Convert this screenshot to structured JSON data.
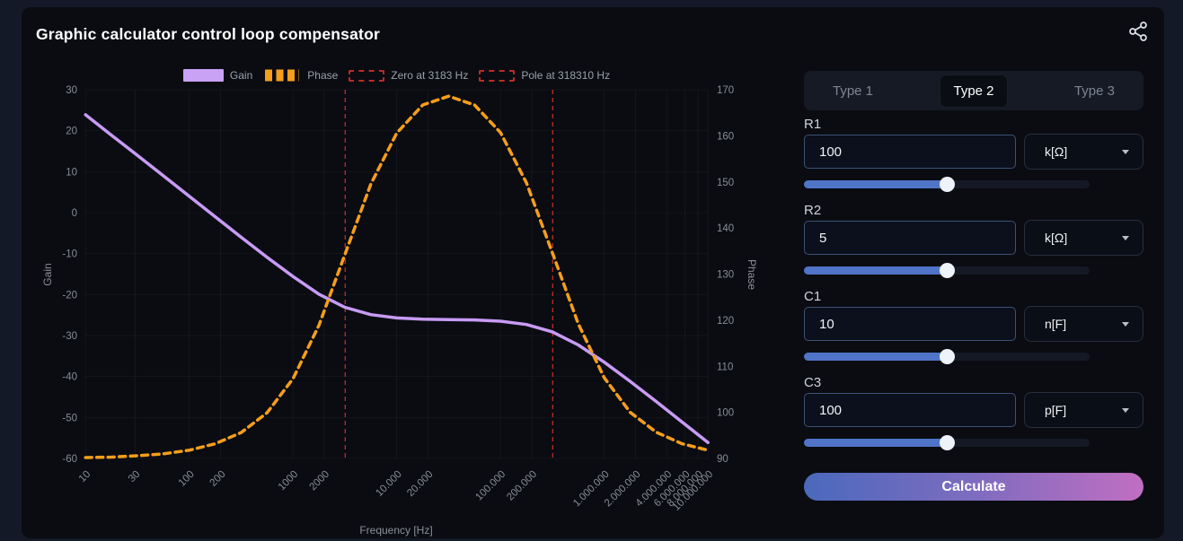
{
  "app": {
    "title": "Graphic calculator control loop compensator",
    "icons": {
      "share": "share-icon",
      "dropdown_caret": "chevron-down-icon"
    }
  },
  "panel": {
    "tabs": [
      {
        "label": "Type 1",
        "active": false
      },
      {
        "label": "Type 2",
        "active": true
      },
      {
        "label": "Type 3",
        "active": false
      }
    ],
    "fields": [
      {
        "id": "R1",
        "label": "R1",
        "value": "100",
        "unit": "k[Ω]",
        "slider_percent": 50
      },
      {
        "id": "R2",
        "label": "R2",
        "value": "5",
        "unit": "k[Ω]",
        "slider_percent": 50
      },
      {
        "id": "C1",
        "label": "C1",
        "value": "10",
        "unit": "n[F]",
        "slider_percent": 50
      },
      {
        "id": "C3",
        "label": "C3",
        "value": "100",
        "unit": "p[F]",
        "slider_percent": 50
      }
    ],
    "calculate_label": "Calculate",
    "colors": {
      "slider_fill": "#4f74c8",
      "input_border": "#3d5077",
      "button_gradient": [
        "#4a69bc",
        "#c16ec1"
      ]
    }
  },
  "chart_data": {
    "type": "line",
    "xlabel": "Frequency [Hz]",
    "x_scale": "log",
    "x_range": [
      10,
      10000000
    ],
    "x_ticks": {
      "values": [
        10,
        30,
        100,
        200,
        1000,
        2000,
        10000,
        20000,
        100000,
        200000,
        1000000,
        2000000,
        4000000,
        6000000,
        8000000,
        10000000
      ],
      "labels": [
        "10",
        "30",
        "100",
        "200",
        "1000",
        "2000",
        "10.000",
        "20.000",
        "100.000",
        "200.000",
        "1.000.000",
        "2.000.000",
        "4.000.000",
        "6.000.000",
        "8.000.000",
        "10.000.000"
      ]
    },
    "y_left": {
      "label": "Gain",
      "ticks": [
        30,
        20,
        10,
        0,
        -10,
        -20,
        -30,
        -40,
        -50,
        -60
      ],
      "range": [
        -60,
        30
      ]
    },
    "y_right": {
      "label": "Phase",
      "ticks": [
        170,
        160,
        150,
        140,
        130,
        120,
        110,
        100,
        90
      ],
      "range": [
        90,
        170
      ]
    },
    "legend": [
      {
        "label": "Gain",
        "type": "solid",
        "color": "#c9a2f5"
      },
      {
        "label": "Phase",
        "type": "dashed",
        "color": "#f59e1b"
      },
      {
        "label": "Zero at 3183 Hz",
        "type": "dashed-box",
        "color": "#bb2d24"
      },
      {
        "label": "Pole at 318310 Hz",
        "type": "dashed-box",
        "color": "#bb2d24"
      }
    ],
    "markers": [
      {
        "label": "Zero at 3183 Hz",
        "freq": 3183,
        "color": "#cf2f26"
      },
      {
        "label": "Pole at 318310 Hz",
        "freq": 318310,
        "color": "#cf2f26"
      }
    ],
    "series": [
      {
        "name": "Gain",
        "axis": "left",
        "style": "solid",
        "color": "#c89bf5",
        "x": [
          10,
          17.8,
          31.6,
          56.2,
          100,
          178,
          316,
          562,
          1000,
          1778,
          3162,
          5623,
          10000,
          17783,
          31623,
          56234,
          100000,
          177828,
          316228,
          562341,
          1000000,
          1778279,
          3162278,
          5623413,
          10000000
        ],
        "y": [
          23.9,
          18.9,
          14.0,
          9.0,
          4.0,
          -1.0,
          -6.0,
          -10.9,
          -15.6,
          -19.9,
          -23.1,
          -24.9,
          -25.7,
          -26.0,
          -26.1,
          -26.2,
          -26.5,
          -27.3,
          -29.1,
          -32.3,
          -36.5,
          -41.2,
          -46.1,
          -51.1,
          -56.1
        ]
      },
      {
        "name": "Phase",
        "axis": "right",
        "style": "dashed",
        "color": "#f59e1b",
        "x": [
          10,
          17.8,
          31.6,
          56.2,
          100,
          178,
          316,
          562,
          1000,
          1778,
          3162,
          5623,
          10000,
          17783,
          31623,
          56234,
          100000,
          177828,
          316228,
          562341,
          1000000,
          1778279,
          3162278,
          5623413,
          10000000
        ],
        "y": [
          90.2,
          90.3,
          90.6,
          91.0,
          91.8,
          93.2,
          95.6,
          99.9,
          107.3,
          118.9,
          134.2,
          149.5,
          160.6,
          166.7,
          168.6,
          166.7,
          160.7,
          149.8,
          134.6,
          119.2,
          107.5,
          100.0,
          95.7,
          93.2,
          91.8
        ]
      }
    ]
  }
}
